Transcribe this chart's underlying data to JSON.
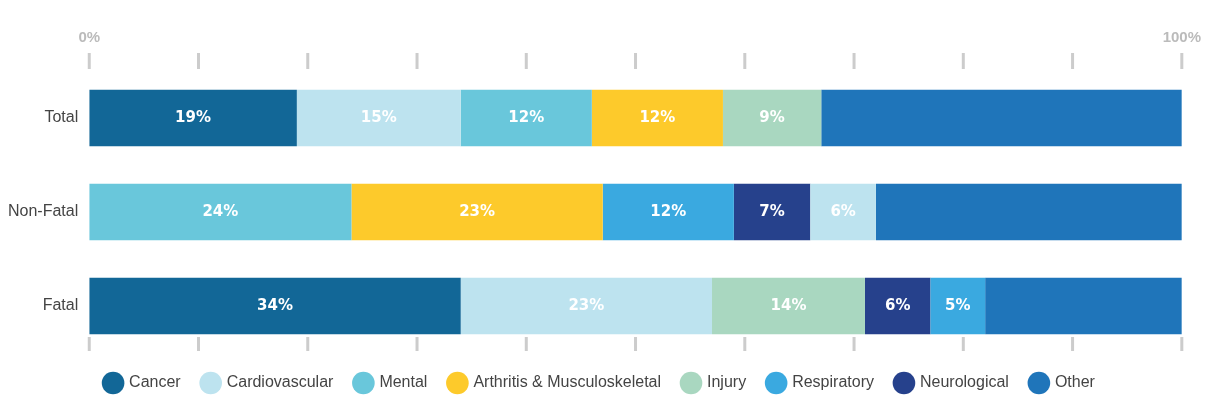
{
  "chart_data": {
    "type": "bar",
    "orientation": "horizontal",
    "categories": [
      "Total",
      "Non-Fatal",
      "Fatal"
    ],
    "xlim": [
      0,
      100
    ],
    "xticks": [
      {
        "value": 0,
        "label": "0%"
      },
      {
        "value": 10,
        "label": null
      },
      {
        "value": 20,
        "label": null
      },
      {
        "value": 30,
        "label": null
      },
      {
        "value": 40,
        "label": null
      },
      {
        "value": 50,
        "label": null
      },
      {
        "value": 60,
        "label": null
      },
      {
        "value": 70,
        "label": null
      },
      {
        "value": 80,
        "label": null
      },
      {
        "value": 90,
        "label": null
      },
      {
        "value": 100,
        "label": "100%"
      }
    ],
    "grid": false,
    "legend": "bottom",
    "series": [
      {
        "name": "Cancer",
        "color": "#126797",
        "values": [
          19,
          null,
          34
        ],
        "base": [
          0,
          null,
          0
        ],
        "value_labels": [
          "19%",
          null,
          "34%"
        ]
      },
      {
        "name": "Cardiovascular",
        "color": "#bde3ef",
        "values": [
          15,
          6,
          23
        ],
        "base": [
          19,
          66,
          34
        ],
        "value_labels": [
          "15%",
          "6%",
          "23%"
        ]
      },
      {
        "name": "Mental",
        "color": "#69c7db",
        "values": [
          12,
          24,
          null
        ],
        "base": [
          34,
          0,
          null
        ],
        "value_labels": [
          "12%",
          "24%",
          null
        ]
      },
      {
        "name": "Arthritis & Musculoskeletal",
        "color": "#fdca2b",
        "values": [
          12,
          23,
          null
        ],
        "base": [
          46,
          24,
          null
        ],
        "value_labels": [
          "12%",
          "23%",
          null
        ]
      },
      {
        "name": "Injury",
        "color": "#a9d7c0",
        "values": [
          9,
          null,
          14
        ],
        "base": [
          58,
          null,
          57
        ],
        "value_labels": [
          "9%",
          null,
          "14%"
        ]
      },
      {
        "name": "Respiratory",
        "color": "#3aa9e0",
        "values": [
          null,
          12,
          5
        ],
        "base": [
          null,
          47,
          77
        ],
        "value_labels": [
          null,
          "12%",
          "5%"
        ]
      },
      {
        "name": "Neurological",
        "color": "#26418c",
        "values": [
          null,
          7,
          6
        ],
        "base": [
          null,
          59,
          71
        ],
        "value_labels": [
          null,
          "7%",
          "6%"
        ]
      },
      {
        "name": "Other",
        "color": "#1f75ba",
        "values": [
          33,
          28,
          18
        ],
        "base": [
          67,
          72,
          82
        ],
        "value_labels": [
          null,
          null,
          null
        ]
      }
    ]
  }
}
